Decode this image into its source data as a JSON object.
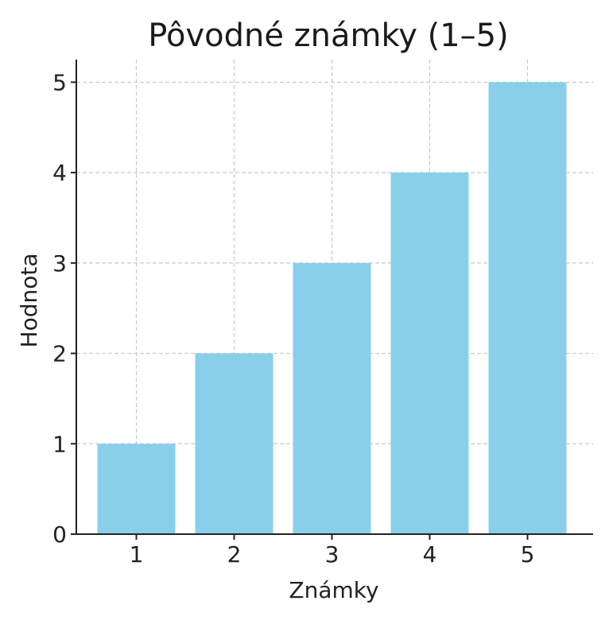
{
  "chart_data": {
    "type": "bar",
    "title": "Pôvodné známky (1–5)",
    "xlabel": "Známky",
    "ylabel": "Hodnota",
    "categories": [
      "1",
      "2",
      "3",
      "4",
      "5"
    ],
    "values": [
      1,
      2,
      3,
      4,
      5
    ],
    "ylim": [
      0,
      5.25
    ],
    "yticks": [
      0,
      1,
      2,
      3,
      4,
      5
    ],
    "grid": true,
    "bar_color": "#89CFEA"
  }
}
